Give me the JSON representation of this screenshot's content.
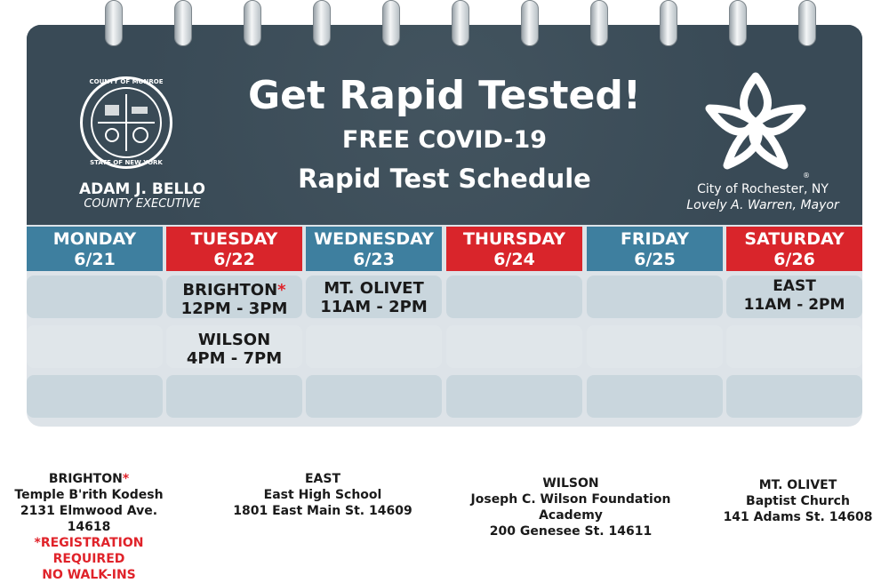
{
  "header": {
    "title": "Get Rapid Tested!",
    "subtitle_line1": "FREE COVID-19",
    "subtitle_line2": "Rapid Test Schedule",
    "left_seal": {
      "top_text": "COUNTY OF MONROE",
      "bottom_text": "STATE OF NEW YORK",
      "name": "ADAM J. BELLO",
      "title": "COUNTY EXECUTIVE"
    },
    "right_logo": {
      "city": "City of Rochester, NY",
      "mayor": "Lovely A. Warren, Mayor",
      "registered": "®"
    }
  },
  "colors": {
    "header_bg": "#394a56",
    "blue_day": "#3e7f9f",
    "red_day": "#d9252b",
    "cell_blue": "#c9d6dd",
    "cell_light": "#e0e6ea",
    "accent_red": "#e0232a"
  },
  "days": [
    {
      "name": "MONDAY",
      "date": "6/21",
      "color": "#3e7f9f"
    },
    {
      "name": "TUESDAY",
      "date": "6/22",
      "color": "#d9252b"
    },
    {
      "name": "WEDNESDAY",
      "date": "6/23",
      "color": "#3e7f9f"
    },
    {
      "name": "THURSDAY",
      "date": "6/24",
      "color": "#d9252b"
    },
    {
      "name": "FRIDAY",
      "date": "6/25",
      "color": "#3e7f9f"
    },
    {
      "name": "SATURDAY",
      "date": "6/26",
      "color": "#d9252b"
    }
  ],
  "schedule": {
    "tuesday_1": {
      "site": "BRIGHTON",
      "marker": "*",
      "time": "12PM - 3PM"
    },
    "tuesday_2": {
      "site": "WILSON",
      "time": "4PM - 7PM"
    },
    "wednesday_1": {
      "site": "MT. OLIVET",
      "time": "11AM - 2PM"
    },
    "saturday_1": {
      "site": "EAST",
      "time": "11AM - 2PM"
    }
  },
  "locations": {
    "brighton": {
      "name": "BRIGHTON",
      "marker": "*",
      "place": "Temple B'rith Kodesh",
      "address": "2131 Elmwood Ave. 14618",
      "note1": "*REGISTRATION REQUIRED",
      "note2": "NO WALK-INS"
    },
    "east": {
      "name": "EAST",
      "place": "East High School",
      "address": "1801 East Main St. 14609"
    },
    "wilson": {
      "name": "WILSON",
      "place": "Joseph C. Wilson Foundation Academy",
      "address": "200 Genesee St. 14611"
    },
    "mt_olivet": {
      "name": "MT. OLIVET",
      "place": "Baptist Church",
      "address": "141 Adams St. 14608"
    }
  }
}
